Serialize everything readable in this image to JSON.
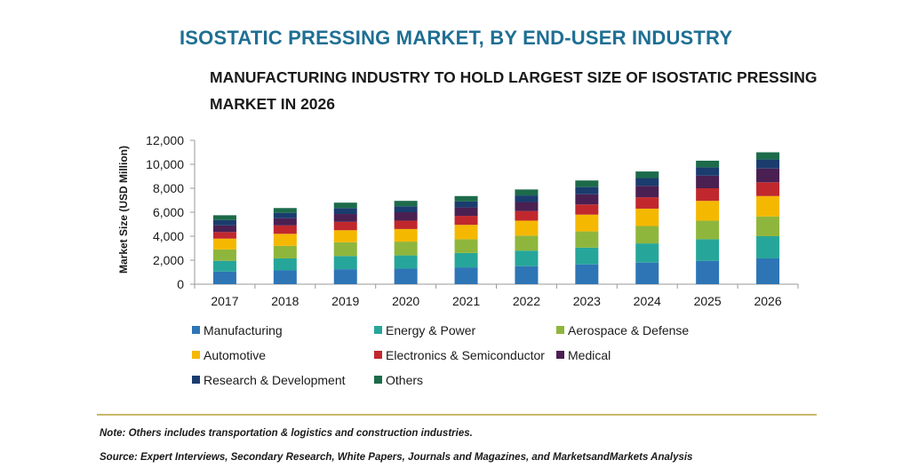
{
  "title": "ISOSTATIC PRESSING MARKET, BY END-USER INDUSTRY",
  "subtitle": "MANUFACTURING INDUSTRY TO HOLD LARGEST SIZE OF ISOSTATIC PRESSING MARKET IN 2026",
  "note": "Note: Others includes transportation & logistics and construction industries.",
  "source": "Source: Expert Interviews, Secondary Research, White Papers, Journals and Magazines, and MarketsandMarkets Analysis",
  "chart_data": {
    "type": "bar",
    "stacked": true,
    "title": "",
    "xlabel": "",
    "ylabel": "Market Size (USD Million)",
    "ylim": [
      0,
      12000
    ],
    "yticks": [
      0,
      2000,
      4000,
      6000,
      8000,
      10000,
      12000
    ],
    "ytick_labels": [
      "0",
      "2,000",
      "4,000",
      "6,000",
      "8,000",
      "10,000",
      "12,000"
    ],
    "categories": [
      "2017",
      "2018",
      "2019",
      "2020",
      "2021",
      "2022",
      "2023",
      "2024",
      "2025",
      "2026"
    ],
    "grid": false,
    "legend_position": "bottom",
    "series": [
      {
        "name": "Manufacturing",
        "color": "#2e75b6",
        "values": [
          1050,
          1150,
          1250,
          1300,
          1400,
          1500,
          1650,
          1800,
          1950,
          2150
        ]
      },
      {
        "name": "Energy & Power",
        "color": "#26a69a",
        "values": [
          900,
          1000,
          1100,
          1100,
          1200,
          1300,
          1400,
          1600,
          1800,
          1850
        ]
      },
      {
        "name": "Aerospace & Defense",
        "color": "#8fb63c",
        "values": [
          950,
          1050,
          1150,
          1150,
          1150,
          1250,
          1350,
          1450,
          1550,
          1650
        ]
      },
      {
        "name": "Automotive",
        "color": "#f5b800",
        "values": [
          900,
          1000,
          1000,
          1050,
          1200,
          1250,
          1400,
          1450,
          1650,
          1700
        ]
      },
      {
        "name": "Electronics & Semiconductor",
        "color": "#c0282d",
        "values": [
          550,
          700,
          700,
          700,
          750,
          800,
          850,
          950,
          1050,
          1150
        ]
      },
      {
        "name": "Medical",
        "color": "#4a2052",
        "values": [
          550,
          600,
          650,
          700,
          700,
          750,
          850,
          950,
          1050,
          1150
        ]
      },
      {
        "name": "Research & Development",
        "color": "#1a3c6e",
        "values": [
          450,
          450,
          500,
          500,
          500,
          550,
          600,
          650,
          700,
          750
        ]
      },
      {
        "name": "Others",
        "color": "#1c6b4a",
        "values": [
          400,
          400,
          450,
          450,
          450,
          500,
          550,
          550,
          550,
          600
        ]
      }
    ]
  }
}
